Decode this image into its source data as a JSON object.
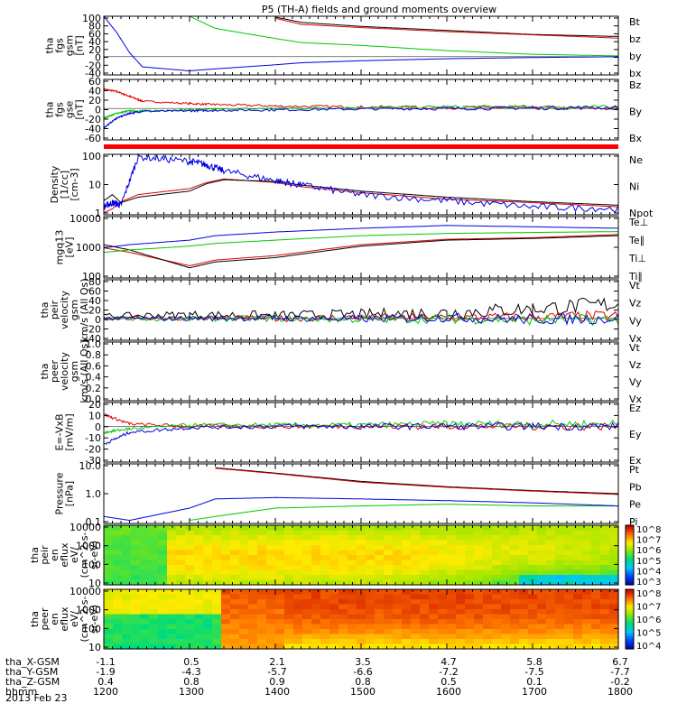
{
  "title": "P5 (TH-A) fields and ground moments overview",
  "date_label": "2013 Feb 23",
  "colors": {
    "black": "#000000",
    "red": "#e00000",
    "green": "#00c800",
    "blue": "#0000e0"
  },
  "colorbar_ticks": {
    "peir": [
      "10^8",
      "10^7",
      "10^6",
      "10^5",
      "10^4",
      "10^3"
    ],
    "peer": [
      "10^8",
      "10^7",
      "10^6",
      "10^5",
      "10^4"
    ]
  },
  "orbit_table": {
    "row_labels": [
      "tha_X-GSM",
      "tha_Y-GSM",
      "tha_Z-GSM",
      "hhmm"
    ],
    "columns": [
      [
        "-1.1",
        "-1.9",
        "0.4",
        "1200"
      ],
      [
        "0.5",
        "-4.3",
        "0.8",
        "1300"
      ],
      [
        "2.1",
        "-5.7",
        "0.9",
        "1400"
      ],
      [
        "3.5",
        "-6.6",
        "0.8",
        "1500"
      ],
      [
        "4.7",
        "-7.2",
        "0.5",
        "1600"
      ],
      [
        "5.8",
        "-7.5",
        "0.1",
        "1700"
      ],
      [
        "6.7",
        "-7.7",
        "-0.2",
        "1800"
      ]
    ]
  },
  "chart_data": [
    {
      "type": "line",
      "ylabel": [
        "tha",
        "fgs",
        "gsm",
        "[nT]"
      ],
      "ytick_labels": [
        "100",
        "80",
        "60",
        "40",
        "20",
        "0",
        "-20",
        "-40"
      ],
      "ylim": [
        -45,
        100
      ],
      "legend": [
        {
          "name": "Bt",
          "color": "#000000"
        },
        {
          "name": "bz",
          "color": "#e00000"
        },
        {
          "name": "by",
          "color": "#00c800"
        },
        {
          "name": "bx",
          "color": "#0000e0"
        }
      ],
      "x": [
        1200,
        1215,
        1230,
        1245,
        1300,
        1330,
        1400,
        1430,
        1500,
        1600,
        1700,
        1800
      ],
      "series": [
        {
          "name": "Bt",
          "values": [
            null,
            null,
            null,
            null,
            null,
            null,
            98,
            85,
            75,
            65,
            55,
            50
          ]
        },
        {
          "name": "bz",
          "values": [
            null,
            null,
            null,
            null,
            null,
            null,
            95,
            80,
            72,
            62,
            54,
            46
          ]
        },
        {
          "name": "by",
          "values": [
            null,
            null,
            null,
            null,
            100,
            70,
            45,
            35,
            28,
            15,
            6,
            2
          ]
        },
        {
          "name": "bx",
          "values": [
            100,
            60,
            10,
            -25,
            -35,
            -30,
            -20,
            -15,
            -10,
            -5,
            -2,
            0
          ]
        }
      ]
    },
    {
      "type": "line",
      "ylabel": [
        "tha",
        "fgs",
        "gse",
        "[nT]"
      ],
      "ytick_labels": [
        "60",
        "40",
        "20",
        "0",
        "-20",
        "-40",
        "-60"
      ],
      "ylim": [
        -65,
        60
      ],
      "legend": [
        {
          "name": "Bz",
          "color": "#e00000"
        },
        {
          "name": "By",
          "color": "#00c800"
        },
        {
          "name": "Bx",
          "color": "#0000e0"
        }
      ],
      "x": [
        1200,
        1215,
        1230,
        1245,
        1300,
        1330,
        1400,
        1500,
        1600,
        1700,
        1800
      ],
      "series": [
        {
          "name": "Bz",
          "values": [
            40,
            35,
            25,
            15,
            10,
            8,
            5,
            3,
            2,
            1,
            0
          ]
        },
        {
          "name": "By",
          "values": [
            -20,
            -10,
            -5,
            -5,
            -3,
            -2,
            0,
            2,
            3,
            3,
            2
          ]
        },
        {
          "name": "Bx",
          "values": [
            -40,
            -20,
            -10,
            -6,
            -5,
            -4,
            -3,
            -1,
            0,
            1,
            2
          ]
        }
      ]
    },
    {
      "type": "line",
      "ylabel": [
        "Density",
        "[1/cc]",
        "[cm-3]"
      ],
      "yscale": "log",
      "ytick_labels": [
        "100",
        "10",
        "1"
      ],
      "ylim": [
        0.2,
        200
      ],
      "legend": [
        {
          "name": "Ne",
          "color": "#e00000"
        },
        {
          "name": "Ni",
          "color": "#000000"
        },
        {
          "name": "Npot",
          "color": "#0000e0"
        }
      ],
      "x": [
        1200,
        1210,
        1220,
        1240,
        1300,
        1320,
        1340,
        1400,
        1430,
        1500,
        1600,
        1700,
        1800
      ],
      "series": [
        {
          "name": "Ne",
          "values": [
            0.25,
            0.4,
            0.9,
            2,
            4,
            8,
            12,
            8,
            5,
            2.5,
            1.2,
            0.8,
            0.5
          ]
        },
        {
          "name": "Ni",
          "values": [
            1,
            2,
            0.8,
            1.5,
            3,
            7,
            11,
            9,
            6,
            3,
            1.5,
            0.9,
            0.6
          ]
        },
        {
          "name": "Npot",
          "values": [
            0.5,
            0.8,
            0.6,
            150,
            90,
            60,
            30,
            10,
            6,
            2,
            1,
            0.5,
            0.4
          ]
        }
      ]
    },
    {
      "type": "line",
      "ylabel": [
        "mgq13",
        "[eV]"
      ],
      "yscale": "log",
      "ytick_labels": [
        "10000",
        "1000",
        "100"
      ],
      "ylim": [
        40,
        10000
      ],
      "legend": [
        {
          "name": "Te⊥",
          "color": "#e00000"
        },
        {
          "name": "Te∥",
          "color": "#000000"
        },
        {
          "name": "Ti⊥",
          "color": "#0000e0"
        },
        {
          "name": "Ti∥",
          "color": "#00c800"
        }
      ],
      "x": [
        1200,
        1230,
        1300,
        1330,
        1400,
        1500,
        1600,
        1700,
        1800
      ],
      "series": [
        {
          "name": "Te⊥",
          "values": [
            600,
            400,
            120,
            200,
            300,
            800,
            1300,
            1500,
            2000
          ]
        },
        {
          "name": "Te∥",
          "values": [
            800,
            500,
            100,
            170,
            250,
            700,
            1200,
            1400,
            1800
          ]
        },
        {
          "name": "Ti⊥",
          "values": [
            600,
            800,
            1200,
            1800,
            2500,
            3500,
            4500,
            4000,
            3500
          ]
        },
        {
          "name": "Ti∥",
          "values": [
            400,
            500,
            700,
            900,
            1200,
            1800,
            2200,
            2400,
            2600
          ]
        }
      ]
    },
    {
      "type": "line",
      "ylabel": [
        "tha",
        "peir",
        "velocity",
        "gsm",
        "km/s (All Qs)"
      ],
      "ytick_labels": [
        "80",
        "60",
        "40",
        "20",
        "0",
        "-20",
        "-40"
      ],
      "ylim": [
        -45,
        80
      ],
      "legend": [
        {
          "name": "Vt",
          "color": "#000000"
        },
        {
          "name": "Vz",
          "color": "#e00000"
        },
        {
          "name": "Vy",
          "color": "#00c800"
        },
        {
          "name": "Vx",
          "color": "#0000e0"
        }
      ],
      "x": [
        1200,
        1300,
        1400,
        1500,
        1600,
        1700,
        1800
      ],
      "series": [
        {
          "name": "Vt",
          "values": [
            5,
            8,
            6,
            8,
            12,
            20,
            30
          ]
        },
        {
          "name": "Vz",
          "values": [
            0,
            1,
            0,
            2,
            1,
            3,
            5
          ]
        },
        {
          "name": "Vy",
          "values": [
            0,
            -1,
            0,
            -2,
            -1,
            -3,
            -2
          ]
        },
        {
          "name": "Vx",
          "values": [
            0,
            0,
            1,
            -1,
            2,
            -2,
            0
          ]
        }
      ]
    },
    {
      "type": "line",
      "ylabel": [
        "tha",
        "peer",
        "velocity",
        "gsm",
        "km/s (All Qs)"
      ],
      "ytick_labels": [
        "1.0",
        "0.8",
        "0.6",
        "0.4",
        "0.2",
        "0.0"
      ],
      "ylim": [
        0,
        1
      ],
      "legend": [
        {
          "name": "Vt",
          "color": "#000000"
        },
        {
          "name": "Vz",
          "color": "#e00000"
        },
        {
          "name": "Vy",
          "color": "#00c800"
        },
        {
          "name": "Vx",
          "color": "#0000e0"
        }
      ],
      "series": []
    },
    {
      "type": "line",
      "ylabel": [
        "E=-VxB",
        "[mV/m]"
      ],
      "ytick_labels": [
        "20",
        "10",
        "0",
        "-10",
        "-20",
        "-30"
      ],
      "ylim": [
        -30,
        20
      ],
      "legend": [
        {
          "name": "Ez",
          "color": "#e00000"
        },
        {
          "name": "Ey",
          "color": "#00c800"
        },
        {
          "name": "Ex",
          "color": "#0000e0"
        }
      ],
      "x": [
        1200,
        1230,
        1300,
        1400,
        1500,
        1600,
        1700,
        1800
      ],
      "series": [
        {
          "name": "Ez",
          "values": [
            10,
            2,
            0,
            0,
            0,
            0,
            0,
            0
          ]
        },
        {
          "name": "Ey",
          "values": [
            -5,
            -2,
            1,
            1,
            1,
            2,
            2,
            2
          ]
        },
        {
          "name": "Ex",
          "values": [
            -15,
            -5,
            -1,
            0,
            0,
            0,
            0,
            0
          ]
        }
      ]
    },
    {
      "type": "line",
      "ylabel": [
        "Pressure",
        "[nPa]"
      ],
      "yscale": "log",
      "ytick_labels": [
        "10.0",
        "1.0",
        "0.1"
      ],
      "ylim": [
        0.02,
        50
      ],
      "legend": [
        {
          "name": "Pt",
          "color": "#000000"
        },
        {
          "name": "Pb",
          "color": "#e00000"
        },
        {
          "name": "Pe",
          "color": "#00c800"
        },
        {
          "name": "Pi",
          "color": "#0000e0"
        }
      ],
      "x": [
        1200,
        1230,
        1300,
        1330,
        1400,
        1500,
        1600,
        1700,
        1800
      ],
      "series": [
        {
          "name": "Pt",
          "values": [
            null,
            null,
            null,
            30,
            15,
            5,
            2.5,
            1.5,
            1
          ]
        },
        {
          "name": "Pb",
          "values": [
            null,
            null,
            null,
            28,
            14,
            4.5,
            2.3,
            1.4,
            0.9
          ]
        },
        {
          "name": "Pe",
          "values": [
            null,
            null,
            0.03,
            0.05,
            0.15,
            0.2,
            0.25,
            0.2,
            0.2
          ]
        },
        {
          "name": "Pi",
          "values": [
            0.05,
            0.03,
            0.15,
            0.5,
            0.6,
            0.5,
            0.4,
            0.3,
            0.2
          ]
        }
      ]
    },
    {
      "type": "heatmap",
      "ylabel": [
        "tha",
        "peir",
        "en",
        "eflux",
        "eV/",
        "(cm^2-s-",
        "sr-eV)"
      ],
      "ytick_labels": [
        "10000",
        "1000",
        "100",
        "10"
      ],
      "yscale": "log",
      "ylim": [
        5,
        30000
      ],
      "zscale": "log",
      "zlim": [
        1000,
        100000000
      ]
    },
    {
      "type": "heatmap",
      "ylabel": [
        "tha",
        "peer",
        "en",
        "eflux",
        "eV/",
        "(cm^2-s-",
        "sr-eV)"
      ],
      "ytick_labels": [
        "10000",
        "1000",
        "100",
        "10"
      ],
      "yscale": "log",
      "ylim": [
        7,
        30000
      ],
      "zscale": "log",
      "zlim": [
        3000,
        100000000
      ]
    }
  ]
}
